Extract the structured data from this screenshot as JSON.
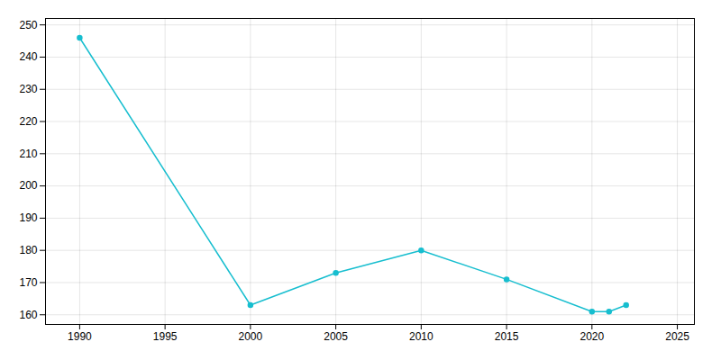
{
  "chart_data": {
    "type": "line",
    "x": [
      1990,
      2000,
      2005,
      2010,
      2015,
      2020,
      2021,
      2022
    ],
    "values": [
      246,
      163,
      173,
      180,
      171,
      161,
      161,
      163
    ],
    "color": "#17becf",
    "marker": "o",
    "xlim": [
      1988,
      2026
    ],
    "ylim": [
      157,
      252
    ],
    "xticks": [
      1990,
      1995,
      2000,
      2005,
      2010,
      2015,
      2020,
      2025
    ],
    "yticks": [
      160,
      170,
      180,
      190,
      200,
      210,
      220,
      230,
      240,
      250
    ],
    "grid": true
  }
}
